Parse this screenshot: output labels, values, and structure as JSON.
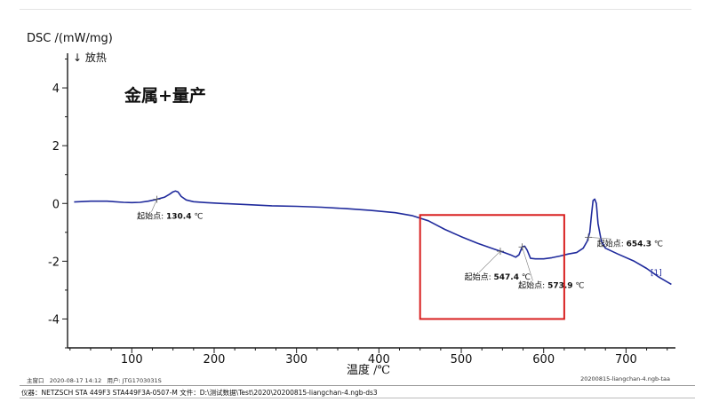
{
  "chart_data": {
    "type": "line",
    "ylabel": "DSC /(mW/mg)",
    "exo_label": "↓ 放热",
    "xlabel": "温度 /℃",
    "title": "金属+量产",
    "xlim": [
      22,
      760
    ],
    "ylim": [
      -5.0,
      5.2
    ],
    "x_ticks": [
      100,
      200,
      300,
      400,
      500,
      600,
      700
    ],
    "y_ticks": [
      -4,
      -2,
      0,
      2,
      4
    ],
    "series_color": "#1f2a9c",
    "curve_label": "[1]",
    "series": [
      {
        "points": [
          [
            30,
            0.05
          ],
          [
            50,
            0.08
          ],
          [
            70,
            0.08
          ],
          [
            90,
            0.04
          ],
          [
            100,
            0.03
          ],
          [
            110,
            0.04
          ],
          [
            120,
            0.08
          ],
          [
            130,
            0.14
          ],
          [
            140,
            0.22
          ],
          [
            146,
            0.32
          ],
          [
            150,
            0.4
          ],
          [
            153,
            0.43
          ],
          [
            156,
            0.4
          ],
          [
            160,
            0.24
          ],
          [
            166,
            0.12
          ],
          [
            175,
            0.06
          ],
          [
            190,
            0.03
          ],
          [
            210,
            0.0
          ],
          [
            240,
            -0.04
          ],
          [
            270,
            -0.08
          ],
          [
            300,
            -0.1
          ],
          [
            330,
            -0.13
          ],
          [
            360,
            -0.18
          ],
          [
            390,
            -0.24
          ],
          [
            420,
            -0.32
          ],
          [
            440,
            -0.42
          ],
          [
            460,
            -0.6
          ],
          [
            480,
            -0.9
          ],
          [
            500,
            -1.15
          ],
          [
            520,
            -1.38
          ],
          [
            540,
            -1.58
          ],
          [
            550,
            -1.68
          ],
          [
            560,
            -1.78
          ],
          [
            566,
            -1.86
          ],
          [
            570,
            -1.78
          ],
          [
            574,
            -1.5
          ],
          [
            577,
            -1.48
          ],
          [
            580,
            -1.62
          ],
          [
            584,
            -1.9
          ],
          [
            590,
            -1.92
          ],
          [
            600,
            -1.92
          ],
          [
            610,
            -1.88
          ],
          [
            620,
            -1.82
          ],
          [
            630,
            -1.75
          ],
          [
            640,
            -1.7
          ],
          [
            648,
            -1.55
          ],
          [
            653,
            -1.3
          ],
          [
            656,
            -1.0
          ],
          [
            658,
            -0.4
          ],
          [
            660,
            0.1
          ],
          [
            662,
            0.15
          ],
          [
            664,
            0.0
          ],
          [
            666,
            -0.7
          ],
          [
            670,
            -1.3
          ],
          [
            675,
            -1.55
          ],
          [
            690,
            -1.75
          ],
          [
            710,
            -2.0
          ],
          [
            725,
            -2.25
          ],
          [
            740,
            -2.55
          ],
          [
            755,
            -2.8
          ]
        ]
      }
    ],
    "annotations": [
      {
        "label": "起始点",
        "value": "130.4",
        "unit": "℃",
        "x": 130.4
      },
      {
        "label": "起始点",
        "value": "547.4",
        "unit": "℃",
        "x": 547.4
      },
      {
        "label": "起始点",
        "value": "573.9",
        "unit": "℃",
        "x": 573.9
      },
      {
        "label": "起始点",
        "value": "654.3",
        "unit": "℃",
        "x": 654.3
      }
    ],
    "highlight_box": {
      "x_range": [
        450,
        625
      ],
      "y_range": [
        -4.0,
        -0.4
      ],
      "color": "#d81e1e"
    }
  },
  "footer": {
    "main_window": "主窗口",
    "datetime": "2020-08-17 14:12",
    "user_label": "用户:",
    "user": "JTG1703031S",
    "filename": "20200815-liangchan-4.ngb-taa"
  },
  "instrument_line": "仪器：NETZSCH STA 449F3 STA449F3A-0507-M  文件：D:\\测试数据\\Test\\2020\\20200815-liangchan-4.ngb-ds3"
}
